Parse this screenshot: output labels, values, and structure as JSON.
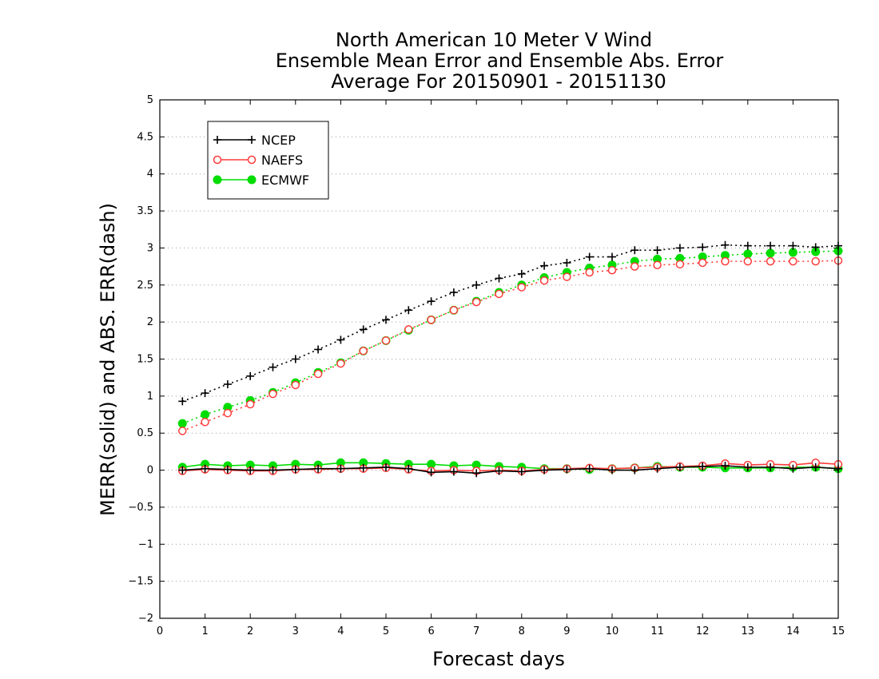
{
  "chart_data": {
    "type": "line",
    "title_lines": [
      "North American 10 Meter V Wind",
      "Ensemble Mean Error and Ensemble Abs. Error",
      "Average For 20150901 - 20151130"
    ],
    "xlabel": "Forecast days",
    "ylabel": "MERR(solid) and ABS. ERR(dash)",
    "xlim": [
      0,
      15
    ],
    "ylim": [
      -2,
      5
    ],
    "xticks": [
      "0",
      "1",
      "2",
      "3",
      "4",
      "5",
      "6",
      "7",
      "8",
      "9",
      "10",
      "11",
      "12",
      "13",
      "14",
      "15"
    ],
    "yticks": [
      "−2",
      "−1.5",
      "−1",
      "−0.5",
      "0",
      "0.5",
      "1",
      "1.5",
      "2",
      "2.5",
      "3",
      "3.5",
      "4",
      "4.5",
      "5"
    ],
    "grid": true,
    "legend_position": "top-left",
    "x": [
      0.5,
      1,
      1.5,
      2,
      2.5,
      3,
      3.5,
      4,
      4.5,
      5,
      5.5,
      6,
      6.5,
      7,
      7.5,
      8,
      8.5,
      9,
      9.5,
      10,
      10.5,
      11,
      11.5,
      12,
      12.5,
      13,
      13.5,
      14,
      14.5,
      15
    ],
    "series": [
      {
        "name": "NCEP",
        "color": "#000000",
        "marker": "plus",
        "abs_error": [
          0.93,
          1.04,
          1.16,
          1.27,
          1.39,
          1.5,
          1.63,
          1.76,
          1.9,
          2.03,
          2.16,
          2.28,
          2.4,
          2.5,
          2.59,
          2.65,
          2.76,
          2.8,
          2.88,
          2.88,
          2.97,
          2.97,
          3.0,
          3.01,
          3.04,
          3.03,
          3.03,
          3.03,
          3.01,
          3.03
        ],
        "mean_error": [
          0.0,
          0.02,
          0.01,
          0.0,
          0.0,
          0.01,
          0.02,
          0.02,
          0.03,
          0.04,
          0.02,
          -0.03,
          -0.02,
          -0.04,
          -0.01,
          -0.02,
          0.0,
          0.01,
          0.02,
          0.0,
          0.0,
          0.02,
          0.04,
          0.05,
          0.06,
          0.04,
          0.04,
          0.02,
          0.04,
          0.02
        ]
      },
      {
        "name": "NAEFS",
        "color": "#ff3b3b",
        "marker": "circle-open",
        "abs_error": [
          0.53,
          0.65,
          0.77,
          0.89,
          1.03,
          1.15,
          1.3,
          1.44,
          1.61,
          1.75,
          1.9,
          2.03,
          2.16,
          2.27,
          2.38,
          2.47,
          2.56,
          2.61,
          2.67,
          2.7,
          2.75,
          2.77,
          2.78,
          2.8,
          2.82,
          2.82,
          2.82,
          2.82,
          2.82,
          2.83
        ],
        "mean_error": [
          -0.01,
          0.01,
          0.0,
          -0.01,
          -0.01,
          0.01,
          0.01,
          0.02,
          0.02,
          0.03,
          0.01,
          -0.01,
          0.0,
          -0.01,
          0.0,
          -0.01,
          0.01,
          0.02,
          0.03,
          0.02,
          0.03,
          0.04,
          0.05,
          0.06,
          0.09,
          0.07,
          0.08,
          0.07,
          0.1,
          0.08
        ]
      },
      {
        "name": "ECMWF",
        "color": "#00dd00",
        "marker": "circle-filled",
        "abs_error": [
          0.63,
          0.75,
          0.85,
          0.94,
          1.05,
          1.18,
          1.32,
          1.45,
          1.61,
          1.75,
          1.89,
          2.03,
          2.16,
          2.28,
          2.4,
          2.5,
          2.6,
          2.67,
          2.73,
          2.77,
          2.82,
          2.85,
          2.86,
          2.88,
          2.9,
          2.92,
          2.93,
          2.94,
          2.95,
          2.96
        ],
        "mean_error": [
          0.04,
          0.08,
          0.06,
          0.07,
          0.06,
          0.08,
          0.07,
          0.1,
          0.1,
          0.09,
          0.08,
          0.08,
          0.06,
          0.07,
          0.05,
          0.04,
          0.02,
          0.02,
          0.01,
          0.02,
          0.03,
          0.05,
          0.04,
          0.04,
          0.03,
          0.03,
          0.03,
          0.04,
          0.04,
          0.02
        ]
      }
    ]
  }
}
